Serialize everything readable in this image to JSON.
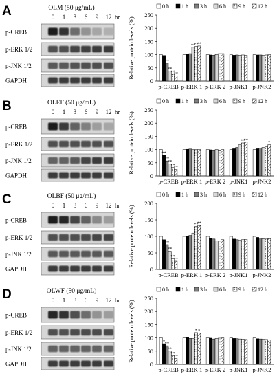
{
  "figure": {
    "hr_unit": "hr",
    "lane_times": [
      "0",
      "1",
      "3",
      "6",
      "9",
      "12"
    ],
    "legend_labels": [
      "0 h",
      "1 h",
      "3 h",
      "6 h",
      "9 h",
      "12 h"
    ],
    "series_colors": [
      "#ffffff",
      "#000000",
      "#7f7f7f",
      "#d9d9d9",
      "#ffffff",
      "#ffffff"
    ],
    "series_patterns": [
      "solid",
      "solid",
      "solid",
      "solid",
      "dots",
      "hatch"
    ]
  },
  "panels": [
    {
      "letter": "A",
      "treatment": "OLM (50 μg/mL)",
      "blot_rows": [
        "p-CREB",
        "p-ERK 1/2",
        "p-JNK 1/2",
        "GAPDH"
      ],
      "band_intensity": [
        [
          0.95,
          0.85,
          0.55,
          0.35,
          0.25,
          0.2
        ],
        [
          0.7,
          0.7,
          0.75,
          0.78,
          0.8,
          0.8
        ],
        [
          0.65,
          0.65,
          0.68,
          0.7,
          0.7,
          0.7
        ],
        [
          0.8,
          0.8,
          0.8,
          0.8,
          0.8,
          0.8
        ]
      ]
    },
    {
      "letter": "B",
      "treatment": "OLEF (50 μg/mL)",
      "blot_rows": [
        "p-CREB",
        "p-ERK 1/2",
        "p-JNK 1/2",
        "GAPDH"
      ],
      "band_intensity": [
        [
          0.95,
          0.8,
          0.6,
          0.45,
          0.3,
          0.25
        ],
        [
          0.7,
          0.7,
          0.7,
          0.7,
          0.7,
          0.7
        ],
        [
          0.6,
          0.6,
          0.65,
          0.75,
          0.8,
          0.8
        ],
        [
          0.8,
          0.8,
          0.8,
          0.8,
          0.8,
          0.8
        ]
      ]
    },
    {
      "letter": "C",
      "treatment": "OLBF (50 μg/mL)",
      "blot_rows": [
        "p-CREB",
        "p-ERK 1/2",
        "p-JNK 1/2",
        "GAPDH"
      ],
      "band_intensity": [
        [
          0.95,
          0.9,
          0.75,
          0.6,
          0.4,
          0.3
        ],
        [
          0.7,
          0.7,
          0.7,
          0.72,
          0.75,
          0.75
        ],
        [
          0.65,
          0.65,
          0.65,
          0.65,
          0.65,
          0.65
        ],
        [
          0.8,
          0.8,
          0.8,
          0.8,
          0.8,
          0.8
        ]
      ]
    },
    {
      "letter": "D",
      "treatment": "OLWF (50 μg/mL)",
      "blot_rows": [
        "p-CREB",
        "p-ERK 1/2",
        "p-JNK 1/2",
        "GAPDH"
      ],
      "band_intensity": [
        [
          0.9,
          0.85,
          0.7,
          0.55,
          0.35,
          0.3
        ],
        [
          0.7,
          0.7,
          0.72,
          0.72,
          0.72,
          0.72
        ],
        [
          0.6,
          0.6,
          0.6,
          0.6,
          0.6,
          0.6
        ],
        [
          0.8,
          0.8,
          0.8,
          0.8,
          0.8,
          0.8
        ]
      ]
    }
  ],
  "chart_data": [
    {
      "type": "bar",
      "ylabel": "Relative protein levels (%)",
      "ylim": [
        0,
        250
      ],
      "yticks": [
        0,
        50,
        100,
        150,
        200,
        250
      ],
      "categories": [
        "p-CREB",
        "p-ERK 1",
        "p-ERK 2",
        "p-JNK1",
        "p-JNK2"
      ],
      "legend_position": "top",
      "series": [
        {
          "name": "0 h",
          "values": [
            100,
            100,
            100,
            100,
            100
          ]
        },
        {
          "name": "1 h",
          "values": [
            97,
            102,
            99,
            98,
            99
          ]
        },
        {
          "name": "3 h",
          "values": [
            68,
            104,
            98,
            99,
            99
          ]
        },
        {
          "name": "6 h",
          "values": [
            38,
            128,
            101,
            98,
            98
          ]
        },
        {
          "name": "9 h",
          "values": [
            26,
            131,
            104,
            99,
            99
          ]
        },
        {
          "name": "12 h",
          "values": [
            20,
            133,
            104,
            98,
            100
          ]
        }
      ],
      "annotations": [
        {
          "category": 0,
          "series": 2,
          "text": "**"
        },
        {
          "category": 0,
          "series": 3,
          "text": "**"
        },
        {
          "category": 0,
          "series": 4,
          "text": "**"
        },
        {
          "category": 0,
          "series": 5,
          "text": "**"
        },
        {
          "category": 1,
          "series": 3,
          "text": "**"
        },
        {
          "category": 1,
          "series": 4,
          "text": "**"
        },
        {
          "category": 1,
          "series": 5,
          "text": "**"
        }
      ]
    },
    {
      "type": "bar",
      "ylabel": "Relative protein levels (%)",
      "ylim": [
        0,
        250
      ],
      "yticks": [
        0,
        50,
        100,
        150,
        200,
        250
      ],
      "categories": [
        "p-CREB",
        "p-ERK 1",
        "p-ERK 2",
        "p-JNK1",
        "p-JNK2"
      ],
      "legend_position": "top",
      "series": [
        {
          "name": "0 h",
          "values": [
            100,
            100,
            100,
            100,
            100
          ]
        },
        {
          "name": "1 h",
          "values": [
            78,
            101,
            99,
            103,
            103
          ]
        },
        {
          "name": "3 h",
          "values": [
            57,
            102,
            98,
            108,
            105
          ]
        },
        {
          "name": "6 h",
          "values": [
            45,
            100,
            100,
            118,
            108
          ]
        },
        {
          "name": "9 h",
          "values": [
            32,
            100,
            98,
            125,
            110
          ]
        },
        {
          "name": "12 h",
          "values": [
            25,
            100,
            100,
            128,
            118
          ]
        }
      ],
      "annotations": [
        {
          "category": 0,
          "series": 1,
          "text": "**"
        },
        {
          "category": 0,
          "series": 2,
          "text": "**"
        },
        {
          "category": 0,
          "series": 3,
          "text": "**"
        },
        {
          "category": 0,
          "series": 4,
          "text": "**"
        },
        {
          "category": 0,
          "series": 5,
          "text": "**"
        },
        {
          "category": 3,
          "series": 4,
          "text": "**"
        },
        {
          "category": 3,
          "series": 5,
          "text": "**"
        },
        {
          "category": 4,
          "series": 5,
          "text": "*"
        }
      ]
    },
    {
      "type": "bar",
      "ylabel": "Relative protein levels (%)",
      "ylim": [
        0,
        200
      ],
      "yticks": [
        0,
        50,
        100,
        150,
        200
      ],
      "categories": [
        "p-CREB",
        "p-ERK 1",
        "p-ERK 2",
        "p-JNK1",
        "p-JNK2"
      ],
      "legend_position": "top",
      "series": [
        {
          "name": "0 h",
          "values": [
            100,
            100,
            100,
            100,
            100
          ]
        },
        {
          "name": "1 h",
          "values": [
            90,
            101,
            95,
            92,
            97
          ]
        },
        {
          "name": "3 h",
          "values": [
            75,
            103,
            92,
            90,
            95
          ]
        },
        {
          "name": "6 h",
          "values": [
            55,
            110,
            87,
            88,
            93
          ]
        },
        {
          "name": "9 h",
          "values": [
            32,
            130,
            86,
            90,
            92
          ]
        },
        {
          "name": "12 h",
          "values": [
            25,
            133,
            90,
            91,
            93
          ]
        }
      ],
      "annotations": [
        {
          "category": 0,
          "series": 2,
          "text": "**"
        },
        {
          "category": 0,
          "series": 3,
          "text": "**"
        },
        {
          "category": 0,
          "series": 4,
          "text": "**"
        },
        {
          "category": 0,
          "series": 5,
          "text": "**"
        },
        {
          "category": 1,
          "series": 4,
          "text": "**"
        },
        {
          "category": 1,
          "series": 5,
          "text": "**"
        }
      ]
    },
    {
      "type": "bar",
      "ylabel": "Relative protein levels (%)",
      "ylim": [
        0,
        250
      ],
      "yticks": [
        0,
        50,
        100,
        150,
        200,
        250
      ],
      "categories": [
        "p-CREB",
        "p-ERK 1",
        "p-ERK 2",
        "p-JNK1",
        "p-JNK2"
      ],
      "legend_position": "top",
      "series": [
        {
          "name": "0 h",
          "values": [
            100,
            100,
            100,
            100,
            100
          ]
        },
        {
          "name": "1 h",
          "values": [
            78,
            101,
            99,
            98,
            97
          ]
        },
        {
          "name": "3 h",
          "values": [
            70,
            98,
            96,
            97,
            96
          ]
        },
        {
          "name": "6 h",
          "values": [
            50,
            98,
            98,
            96,
            95
          ]
        },
        {
          "name": "9 h",
          "values": [
            32,
            120,
            99,
            95,
            94
          ]
        },
        {
          "name": "12 h",
          "values": [
            22,
            118,
            100,
            94,
            93
          ]
        }
      ],
      "annotations": [
        {
          "category": 0,
          "series": 1,
          "text": "*"
        },
        {
          "category": 0,
          "series": 2,
          "text": "**"
        },
        {
          "category": 0,
          "series": 3,
          "text": "**"
        },
        {
          "category": 0,
          "series": 4,
          "text": "**"
        },
        {
          "category": 0,
          "series": 5,
          "text": "**"
        },
        {
          "category": 1,
          "series": 4,
          "text": "*"
        },
        {
          "category": 1,
          "series": 5,
          "text": "*"
        }
      ]
    }
  ]
}
